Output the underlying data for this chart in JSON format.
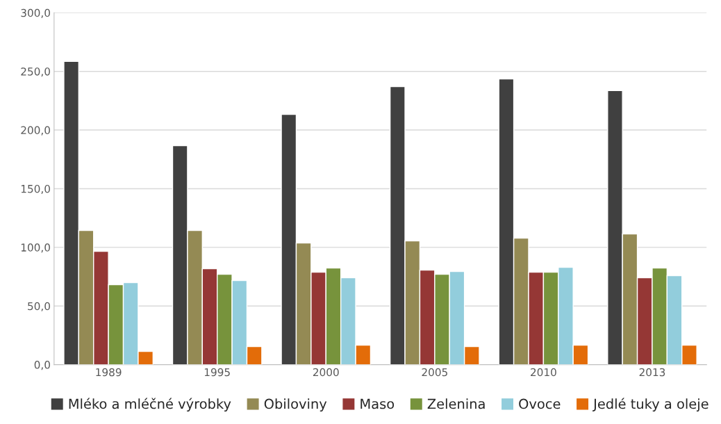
{
  "chart_data": {
    "type": "bar",
    "categories": [
      "1989",
      "1995",
      "2000",
      "2005",
      "2010",
      "2013"
    ],
    "series": [
      {
        "name": "Mléko a mléčné výrobky",
        "color": "#404040",
        "values": [
          258.5,
          186.7,
          213.4,
          237.1,
          243.6,
          233.6
        ]
      },
      {
        "name": "Obiloviny",
        "color": "#948a54",
        "values": [
          114.4,
          114.4,
          103.7,
          105.5,
          107.9,
          111.4
        ]
      },
      {
        "name": "Maso",
        "color": "#953735",
        "values": [
          96.6,
          81.8,
          78.8,
          80.6,
          78.8,
          74.1
        ]
      },
      {
        "name": "Zelenina",
        "color": "#77933c",
        "values": [
          68.2,
          77.1,
          82.4,
          77.1,
          78.8,
          82.4
        ]
      },
      {
        "name": "Ovoce",
        "color": "#92cddc",
        "values": [
          70.0,
          71.7,
          74.1,
          79.4,
          83.0,
          75.9
        ]
      },
      {
        "name": "Jedlé tuky a oleje",
        "color": "#e36c09",
        "values": [
          11.3,
          15.4,
          16.6,
          15.4,
          16.6,
          16.6
        ]
      }
    ],
    "ylim": [
      0,
      300
    ],
    "yticks": [
      {
        "value": 0,
        "label": "0,0"
      },
      {
        "value": 50,
        "label": "50,0"
      },
      {
        "value": 100,
        "label": "100,0"
      },
      {
        "value": 150,
        "label": "150,0"
      },
      {
        "value": 200,
        "label": "200,0"
      },
      {
        "value": 250,
        "label": "250,0"
      },
      {
        "value": 300,
        "label": "300,0"
      }
    ],
    "grid": "y",
    "legend": "bottom"
  }
}
